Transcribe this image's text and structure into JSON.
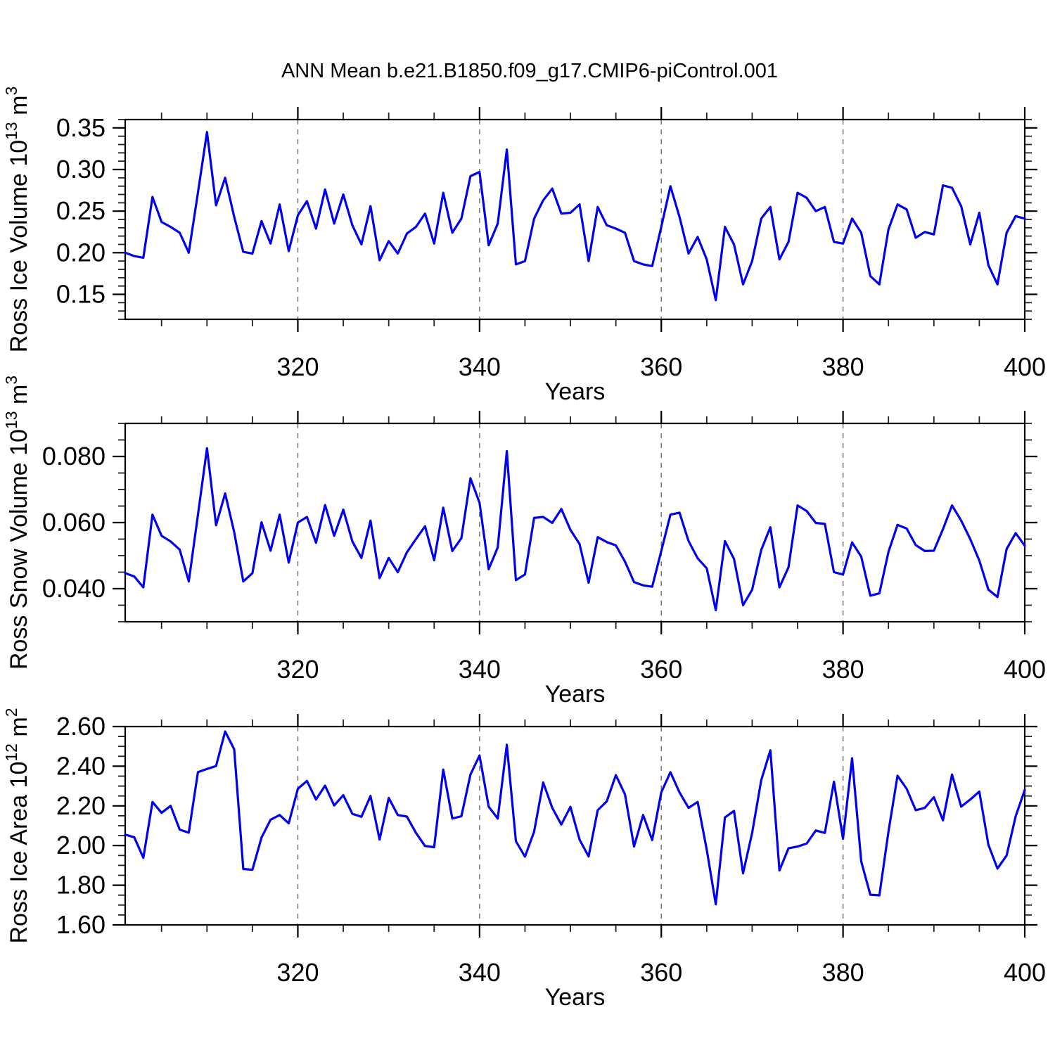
{
  "title": "ANN Mean b.e21.B1850.f09_g17.CMIP6-piControl.001",
  "colors": {
    "line": "#0000ee",
    "frame": "#000000",
    "grid": "#777777",
    "background": "#ffffff"
  },
  "chart_data": [
    {
      "type": "line",
      "name": "ross-ice-volume",
      "ylabel": "Ross Ice Volume 10^13 m^3",
      "ylabel_parts": {
        "text": "Ross Ice Volume 10",
        "exp": "13",
        "unit": " m",
        "unit_exp": "3"
      },
      "xlabel": "Years",
      "x": {
        "first": 301,
        "last": 400,
        "step": 1
      },
      "ylim": [
        0.12,
        0.36
      ],
      "yticks": {
        "values": [
          0.15,
          0.2,
          0.25,
          0.3,
          0.35
        ],
        "labels": [
          "0.15",
          "0.20",
          "0.25",
          "0.30",
          "0.35"
        ],
        "minor_step": 0.01
      },
      "xticks": {
        "values": [
          320,
          340,
          360,
          380,
          400
        ],
        "labels": [
          "320",
          "340",
          "360",
          "380",
          "400"
        ],
        "minor_step": 5,
        "gridlines": [
          320,
          340,
          360,
          380
        ]
      },
      "values": [
        0.2,
        0.196,
        0.194,
        0.267,
        0.237,
        0.231,
        0.224,
        0.2,
        0.272,
        0.345,
        0.257,
        0.29,
        0.243,
        0.201,
        0.199,
        0.238,
        0.211,
        0.258,
        0.202,
        0.245,
        0.262,
        0.229,
        0.276,
        0.235,
        0.27,
        0.233,
        0.21,
        0.256,
        0.191,
        0.214,
        0.199,
        0.223,
        0.231,
        0.247,
        0.211,
        0.272,
        0.224,
        0.241,
        0.292,
        0.297,
        0.209,
        0.235,
        0.324,
        0.186,
        0.19,
        0.241,
        0.263,
        0.277,
        0.247,
        0.248,
        0.258,
        0.19,
        0.255,
        0.233,
        0.229,
        0.224,
        0.19,
        0.186,
        0.184,
        0.231,
        0.28,
        0.243,
        0.199,
        0.219,
        0.192,
        0.143,
        0.231,
        0.21,
        0.162,
        0.19,
        0.241,
        0.255,
        0.192,
        0.213,
        0.272,
        0.266,
        0.25,
        0.255,
        0.213,
        0.211,
        0.241,
        0.224,
        0.172,
        0.162,
        0.228,
        0.258,
        0.252,
        0.218,
        0.225,
        0.222,
        0.281,
        0.278,
        0.256,
        0.21,
        0.248,
        0.185,
        0.162,
        0.224,
        0.244,
        0.241
      ]
    },
    {
      "type": "line",
      "name": "ross-snow-volume",
      "ylabel": "Ross Snow Volume 10^13 m^3",
      "ylabel_parts": {
        "text": "Ross Snow Volume 10",
        "exp": "13",
        "unit": " m",
        "unit_exp": "3"
      },
      "xlabel": "Years",
      "x": {
        "first": 301,
        "last": 400,
        "step": 1
      },
      "ylim": [
        0.03,
        0.09
      ],
      "yticks": {
        "values": [
          0.04,
          0.06,
          0.08
        ],
        "labels": [
          "0.040",
          "0.060",
          "0.080"
        ],
        "minor_step": 0.005
      },
      "xticks": {
        "values": [
          320,
          340,
          360,
          380,
          400
        ],
        "labels": [
          "320",
          "340",
          "360",
          "380",
          "400"
        ],
        "minor_step": 5,
        "gridlines": [
          320,
          340,
          360,
          380
        ]
      },
      "values": [
        0.0447,
        0.0437,
        0.0404,
        0.0624,
        0.056,
        0.0543,
        0.0518,
        0.0422,
        0.0623,
        0.0825,
        0.0592,
        0.0688,
        0.0571,
        0.0422,
        0.0447,
        0.0601,
        0.0515,
        0.0624,
        0.0479,
        0.06,
        0.0617,
        0.0539,
        0.0653,
        0.056,
        0.0639,
        0.0543,
        0.0493,
        0.0606,
        0.0432,
        0.0493,
        0.045,
        0.051,
        0.055,
        0.0589,
        0.0486,
        0.0645,
        0.0514,
        0.0553,
        0.0734,
        0.066,
        0.0459,
        0.0525,
        0.0816,
        0.0426,
        0.0443,
        0.0614,
        0.0617,
        0.0599,
        0.0641,
        0.0578,
        0.0535,
        0.0418,
        0.0556,
        0.0541,
        0.0531,
        0.0482,
        0.042,
        0.041,
        0.0406,
        0.0514,
        0.0624,
        0.063,
        0.0544,
        0.0492,
        0.0462,
        0.0335,
        0.0544,
        0.049,
        0.035,
        0.0397,
        0.0517,
        0.0586,
        0.0404,
        0.0465,
        0.0652,
        0.0635,
        0.0599,
        0.0596,
        0.045,
        0.0443,
        0.054,
        0.0497,
        0.0379,
        0.0386,
        0.0511,
        0.0593,
        0.0582,
        0.0532,
        0.0514,
        0.0515,
        0.058,
        0.0652,
        0.0606,
        0.055,
        0.0485,
        0.0397,
        0.0375,
        0.052,
        0.0568,
        0.053
      ]
    },
    {
      "type": "line",
      "name": "ross-ice-area",
      "ylabel": "Ross Ice Area 10^12 m^2",
      "ylabel_parts": {
        "text": "Ross Ice Area 10",
        "exp": "12",
        "unit": " m",
        "unit_exp": "2"
      },
      "xlabel": "Years",
      "x": {
        "first": 301,
        "last": 400,
        "step": 1
      },
      "ylim": [
        1.6,
        2.6
      ],
      "yticks": {
        "values": [
          1.6,
          1.8,
          2.0,
          2.2,
          2.4,
          2.6
        ],
        "labels": [
          "1.60",
          "1.80",
          "2.00",
          "2.20",
          "2.40",
          "2.60"
        ],
        "minor_step": 0.05
      },
      "xticks": {
        "values": [
          320,
          340,
          360,
          380,
          400
        ],
        "labels": [
          "320",
          "340",
          "360",
          "380",
          "400"
        ],
        "minor_step": 5,
        "gridlines": [
          320,
          340,
          360,
          380
        ]
      },
      "values": [
        2.055,
        2.042,
        1.938,
        2.22,
        2.165,
        2.2,
        2.08,
        2.065,
        2.37,
        2.386,
        2.401,
        2.575,
        2.485,
        1.882,
        1.878,
        2.04,
        2.13,
        2.154,
        2.112,
        2.286,
        2.326,
        2.232,
        2.302,
        2.202,
        2.254,
        2.16,
        2.145,
        2.25,
        2.03,
        2.24,
        2.154,
        2.146,
        2.064,
        1.998,
        1.992,
        2.383,
        2.136,
        2.148,
        2.358,
        2.454,
        2.196,
        2.136,
        2.508,
        2.022,
        1.944,
        2.07,
        2.318,
        2.19,
        2.106,
        2.195,
        2.03,
        1.945,
        2.178,
        2.223,
        2.355,
        2.258,
        1.995,
        2.154,
        2.028,
        2.268,
        2.37,
        2.268,
        2.19,
        2.22,
        1.98,
        1.704,
        2.142,
        2.174,
        1.86,
        2.064,
        2.329,
        2.48,
        1.875,
        1.986,
        1.995,
        2.01,
        2.076,
        2.064,
        2.322,
        2.034,
        2.44,
        1.92,
        1.752,
        1.749,
        2.07,
        2.352,
        2.286,
        2.178,
        2.19,
        2.244,
        2.127,
        2.358,
        2.196,
        2.232,
        2.272,
        2.004,
        1.884,
        1.95,
        2.148,
        2.28
      ]
    }
  ]
}
